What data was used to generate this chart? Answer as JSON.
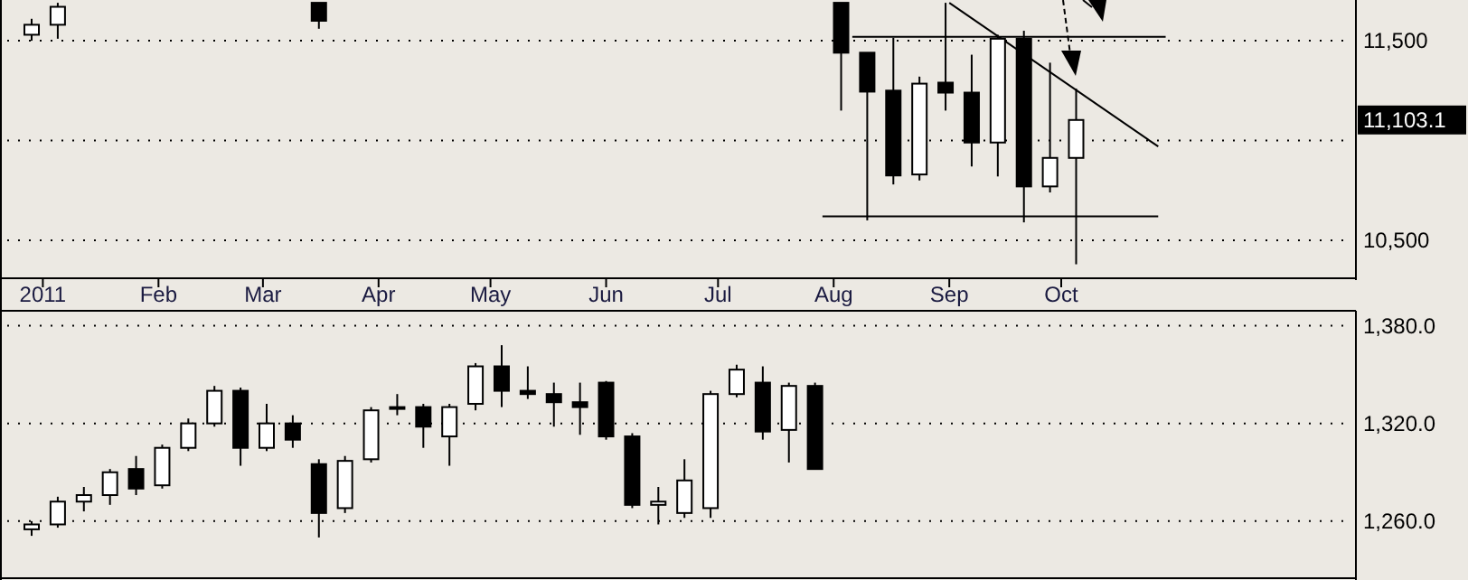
{
  "chart_data": [
    {
      "type": "candlestick",
      "color": "#000000",
      "grid": "y",
      "x": [
        "2010-12-29",
        "2011-01-05",
        "2011-03-16",
        "2011-08-03",
        "2011-08-10",
        "2011-08-17",
        "2011-08-24",
        "2011-08-31",
        "2011-09-07",
        "2011-09-14",
        "2011-09-21",
        "2011-09-28",
        "2011-10-05"
      ],
      "ohlc": [
        [
          11530,
          11610,
          11500,
          11580
        ],
        [
          11580,
          11690,
          11510,
          11670
        ],
        [
          11690,
          11690,
          11560,
          11600
        ],
        [
          11690,
          11690,
          11150,
          11440
        ],
        [
          11440,
          11440,
          10600,
          11245
        ],
        [
          11250,
          11515,
          10780,
          10825
        ],
        [
          10830,
          11320,
          10800,
          11285
        ],
        [
          11290,
          11690,
          11150,
          11240
        ],
        [
          11240,
          11430,
          10870,
          10990
        ],
        [
          10990,
          11530,
          10820,
          11510
        ],
        [
          11510,
          11550,
          10590,
          10770
        ],
        [
          10770,
          11390,
          10740,
          10913
        ],
        [
          10913,
          11260,
          10380,
          11103
        ]
      ],
      "series": [
        {
          "type": "line",
          "color": "#000000",
          "x": [
            "2011-08-06",
            "2011-10-29"
          ],
          "values": [
            11520,
            11520
          ]
        },
        {
          "type": "line",
          "color": "#000000",
          "x": [
            "2011-07-29",
            "2011-10-27"
          ],
          "values": [
            10620,
            10620
          ]
        },
        {
          "type": "line",
          "color": "#000000",
          "x": [
            "2011-09-01",
            "2011-10-27"
          ],
          "values": [
            11690,
            10970
          ]
        }
      ],
      "marker": "none",
      "xlim": [
        "2010-12-21",
        "2011-12-19"
      ],
      "xticks": [
        {
          "value": "2011-01-01",
          "label": "2011"
        },
        {
          "value": "2011-02-01",
          "label": "Feb"
        },
        {
          "value": "2011-03-01",
          "label": "Mar"
        },
        {
          "value": "2011-04-01",
          "label": "Apr"
        },
        {
          "value": "2011-05-01",
          "label": "May"
        },
        {
          "value": "2011-06-01",
          "label": "Jun"
        },
        {
          "value": "2011-07-01",
          "label": "Jul"
        },
        {
          "value": "2011-08-01",
          "label": "Aug"
        },
        {
          "value": "2011-09-01",
          "label": "Sep"
        },
        {
          "value": "2011-10-01",
          "label": "Oct"
        }
      ],
      "ylim": [
        10310,
        11695
      ],
      "yticks": [
        {
          "value": 10500,
          "label": "10,500"
        },
        {
          "value": 11000,
          "label": null
        },
        {
          "value": 11500,
          "label": "11,500"
        }
      ],
      "annotations": [
        "11,103.1"
      ]
    },
    {
      "type": "candlestick",
      "color": "#000000",
      "grid": "y",
      "tick_labels": "y",
      "x": [
        "2010-12-29",
        "2011-01-05",
        "2011-01-12",
        "2011-01-19",
        "2011-01-26",
        "2011-02-02",
        "2011-02-09",
        "2011-02-16",
        "2011-02-23",
        "2011-03-02",
        "2011-03-09",
        "2011-03-16",
        "2011-03-23",
        "2011-03-30",
        "2011-04-06",
        "2011-04-13",
        "2011-04-20",
        "2011-04-27",
        "2011-05-04",
        "2011-05-11",
        "2011-05-18",
        "2011-05-25",
        "2011-06-01",
        "2011-06-08",
        "2011-06-15",
        "2011-06-22",
        "2011-06-29",
        "2011-07-06",
        "2011-07-13",
        "2011-07-20",
        "2011-07-27"
      ],
      "ohlc": [
        [
          1255,
          1260,
          1251,
          1258
        ],
        [
          1258,
          1275,
          1256,
          1272
        ],
        [
          1272,
          1281,
          1266,
          1276
        ],
        [
          1276,
          1292,
          1270,
          1290
        ],
        [
          1292,
          1300,
          1276,
          1280
        ],
        [
          1282,
          1307,
          1280,
          1305
        ],
        [
          1305,
          1323,
          1303,
          1320
        ],
        [
          1320,
          1343,
          1318,
          1340
        ],
        [
          1340,
          1342,
          1294,
          1305
        ],
        [
          1305,
          1332,
          1303,
          1320
        ],
        [
          1320,
          1325,
          1305,
          1310
        ],
        [
          1295,
          1298,
          1250,
          1265
        ],
        [
          1268,
          1300,
          1265,
          1297
        ],
        [
          1298,
          1330,
          1296,
          1328
        ],
        [
          1330,
          1338,
          1325,
          1330
        ],
        [
          1330,
          1332,
          1305,
          1318
        ],
        [
          1312,
          1332,
          1294,
          1330
        ],
        [
          1332,
          1357,
          1328,
          1355
        ],
        [
          1355,
          1368,
          1330,
          1340
        ],
        [
          1340,
          1355,
          1335,
          1338
        ],
        [
          1338,
          1345,
          1318,
          1333
        ],
        [
          1333,
          1345,
          1313,
          1330
        ],
        [
          1345,
          1346,
          1310,
          1312
        ],
        [
          1312,
          1314,
          1268,
          1270
        ],
        [
          1270,
          1281,
          1258,
          1272
        ],
        [
          1265,
          1298,
          1262,
          1285
        ],
        [
          1268,
          1340,
          1262,
          1338
        ],
        [
          1338,
          1356,
          1336,
          1353
        ],
        [
          1345,
          1355,
          1310,
          1315
        ],
        [
          1316,
          1345,
          1296,
          1343
        ],
        [
          1343,
          1345,
          1292,
          1292
        ]
      ],
      "xlim": [
        "2010-12-21",
        "2011-12-19"
      ],
      "ylim": [
        1225,
        1388
      ],
      "yticks": [
        {
          "value": 1260,
          "label": "1,260.0"
        },
        {
          "value": 1320,
          "label": "1,320.0"
        },
        {
          "value": 1380,
          "label": "1,380.0"
        }
      ]
    }
  ]
}
